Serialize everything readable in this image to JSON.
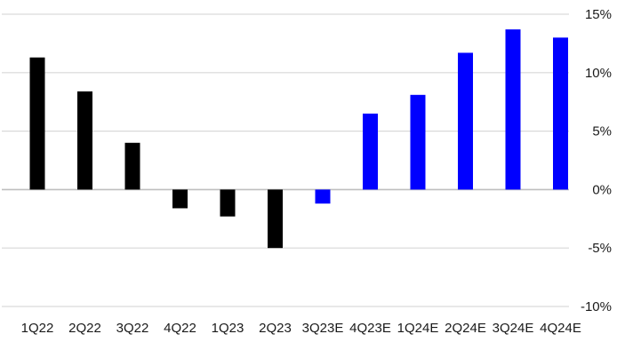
{
  "chart_data": {
    "type": "bar",
    "categories": [
      "1Q22",
      "2Q22",
      "3Q22",
      "4Q22",
      "1Q23",
      "2Q23",
      "3Q23E",
      "4Q23E",
      "1Q24E",
      "2Q24E",
      "3Q24E",
      "4Q24E"
    ],
    "values": [
      11.3,
      8.4,
      4.0,
      -1.6,
      -2.3,
      -5.0,
      -1.2,
      6.5,
      8.1,
      11.7,
      13.7,
      13.0
    ],
    "estimate": [
      false,
      false,
      false,
      false,
      false,
      false,
      true,
      true,
      true,
      true,
      true,
      true
    ],
    "ylim": [
      -10,
      15
    ],
    "yticks": [
      15,
      10,
      5,
      0,
      -5,
      -10
    ],
    "ytick_labels": [
      "15%",
      "10%",
      "5%",
      "0%",
      "-5%",
      "-10%"
    ],
    "y_axis_side": "right",
    "grid": true,
    "colors": {
      "actual": "#000000",
      "estimate": "#0000ff",
      "grid": "#d9d9d9",
      "zero_line": "#bfbfbf"
    }
  }
}
